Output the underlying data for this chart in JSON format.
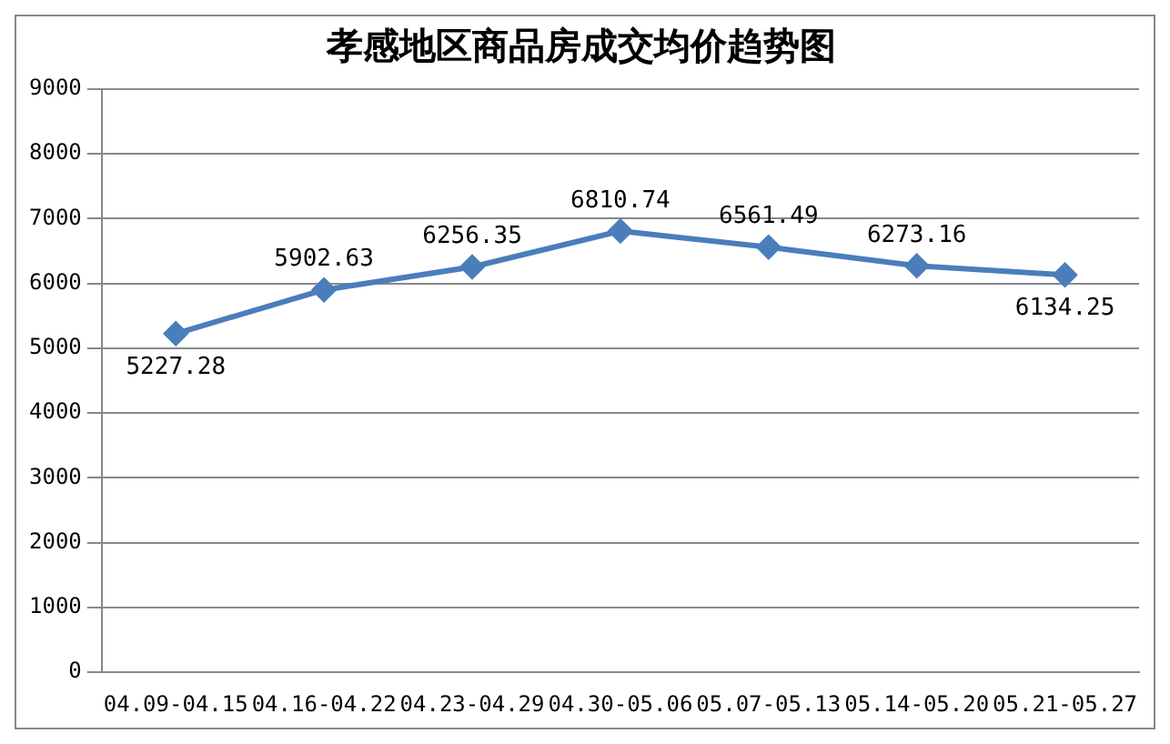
{
  "chart_data": {
    "type": "line",
    "title": "孝感地区商品房成交均价趋势图",
    "categories": [
      "04.09-04.15",
      "04.16-04.22",
      "04.23-04.29",
      "04.30-05.06",
      "05.07-05.13",
      "05.14-05.20",
      "05.21-05.27"
    ],
    "series": [
      {
        "color": "#4a7ebb",
        "values": [
          5227.28,
          5902.63,
          6256.35,
          6810.74,
          6561.49,
          6273.16,
          6134.25
        ]
      }
    ],
    "ylim": [
      0,
      9000
    ],
    "yticks": [
      0,
      1000,
      2000,
      3000,
      4000,
      5000,
      6000,
      7000,
      8000,
      9000
    ],
    "grid": "y",
    "legend": false,
    "marker": "diamond",
    "line_style": "solid",
    "data_labels": true
  }
}
